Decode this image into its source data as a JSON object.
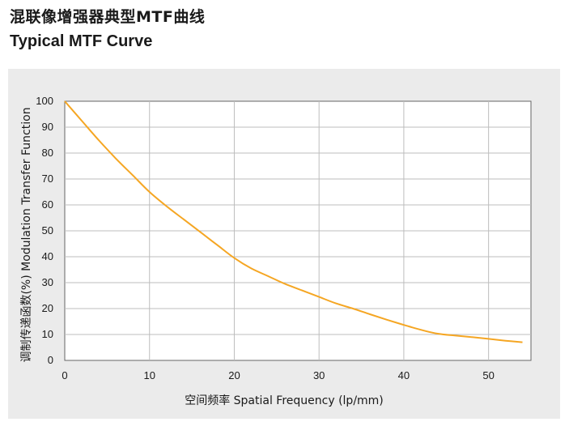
{
  "header": {
    "title_cn": "混联像增强器典型MTF曲线",
    "title_en": "Typical MTF Curve"
  },
  "chart_data": {
    "type": "line",
    "title": "Typical MTF Curve",
    "xlabel": "空间频率  Spatial Frequency  (lp/mm)",
    "ylabel": "调制传递函数(%) Modulation Transfer Function",
    "xlim": [
      0,
      55
    ],
    "ylim": [
      0,
      100
    ],
    "xticks": [
      0,
      10,
      20,
      30,
      40,
      50
    ],
    "yticks": [
      0,
      10,
      20,
      30,
      40,
      50,
      60,
      70,
      80,
      90,
      100
    ],
    "grid": true,
    "line_color": "#f5a623",
    "series": [
      {
        "x": [
          0,
          2,
          4,
          6,
          8,
          10,
          12,
          14,
          16,
          18,
          20,
          22,
          24,
          26,
          28,
          30,
          32,
          34,
          36,
          38,
          40,
          42,
          44,
          46,
          48,
          50,
          52,
          54
        ],
        "values": [
          100,
          92.5,
          85,
          78,
          71.5,
          65,
          59.5,
          54.5,
          49.5,
          44.5,
          39.5,
          35.5,
          32.5,
          29.5,
          27,
          24.5,
          22,
          20,
          17.8,
          15.7,
          13.7,
          11.8,
          10.3,
          9.6,
          9,
          8.3,
          7.6,
          7
        ]
      }
    ]
  }
}
